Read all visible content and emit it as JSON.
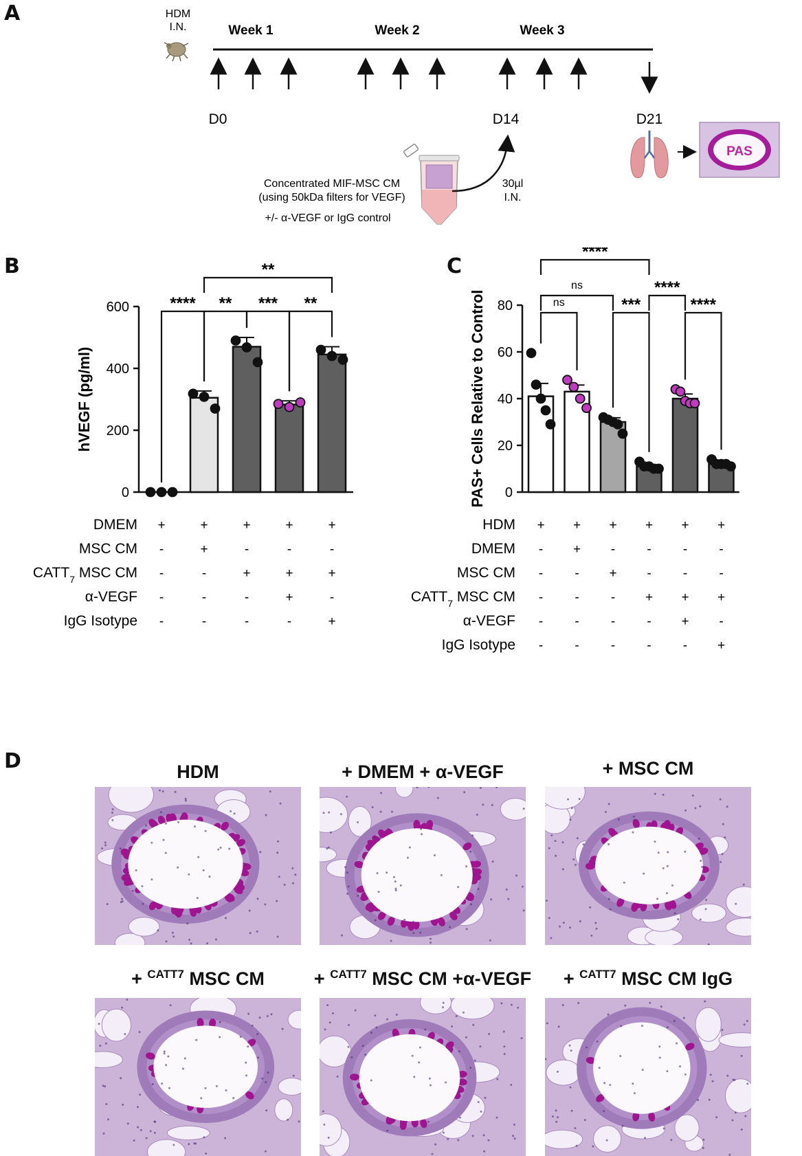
{
  "panels": {
    "A": "A",
    "B": "B",
    "C": "C",
    "D": "D"
  },
  "schematic": {
    "hdm_label_line1": "HDM",
    "hdm_label_line2": "I.N.",
    "weeks": [
      "Week 1",
      "Week 2",
      "Week 3"
    ],
    "day_labels": [
      "D0",
      "D14",
      "D21"
    ],
    "cm_line1": "Concentrated MIF-MSC CM",
    "cm_line2": "(using 50kDa filters for VEGF)",
    "cm_line3": "+/- α-VEGF or IgG control",
    "dose_line1": "30µl",
    "dose_line2": "I.N.",
    "pas_label": "PAS"
  },
  "chart_data": [
    {
      "type": "bar",
      "panel": "B",
      "ylabel": "hVEGF (pg/ml)",
      "ylim": [
        0,
        600
      ],
      "yticks": [
        0,
        200,
        400,
        600
      ],
      "bar_values": [
        0,
        305,
        470,
        283,
        445
      ],
      "sem": [
        0,
        22,
        30,
        12,
        25
      ],
      "bar_colors": [
        "#ffffff",
        "#e5e5e5",
        "#5f5f5f",
        "#5f5f5f",
        "#5f5f5f"
      ],
      "points": [
        [
          0,
          0,
          0
        ],
        [
          318,
          308,
          270
        ],
        [
          490,
          468,
          420
        ],
        [
          285,
          275,
          290
        ],
        [
          460,
          440,
          428
        ]
      ],
      "point_colors": [
        "#111111",
        "#111111",
        "#111111",
        "#c03ac0",
        "#111111"
      ],
      "conditions": [
        {
          "label": "DMEM",
          "signs": [
            "+",
            "+",
            "+",
            "+",
            "+"
          ]
        },
        {
          "label": "MSC CM",
          "signs": [
            "-",
            "+",
            "-",
            "-",
            "-"
          ]
        },
        {
          "label": "CATT",
          "sub": "7",
          "label_rest": " MSC CM",
          "signs": [
            "-",
            "-",
            "+",
            "+",
            "+"
          ]
        },
        {
          "label": "α-VEGF",
          "signs": [
            "-",
            "-",
            "-",
            "+",
            "-"
          ]
        },
        {
          "label": "IgG Isotype",
          "signs": [
            "-",
            "-",
            "-",
            "-",
            "+"
          ]
        }
      ],
      "brackets": [
        {
          "from": 0,
          "to": 1,
          "label": "****",
          "level": 0
        },
        {
          "from": 1,
          "to": 2,
          "label": "**",
          "level": 0
        },
        {
          "from": 2,
          "to": 3,
          "label": "***",
          "level": 0
        },
        {
          "from": 3,
          "to": 4,
          "label": "**",
          "level": 0
        },
        {
          "from": 1,
          "to": 4,
          "label": "**",
          "level": 1
        }
      ]
    },
    {
      "type": "bar",
      "panel": "C",
      "ylabel": "PAS+ Cells Relative to Control",
      "ylim": [
        0,
        80
      ],
      "yticks": [
        0,
        20,
        40,
        60,
        80
      ],
      "bar_values": [
        41,
        43,
        30,
        11,
        40,
        12
      ],
      "sem": [
        5.5,
        2.8,
        1.8,
        0.8,
        2.0,
        0.8
      ],
      "bar_colors": [
        "#ffffff",
        "#ffffff",
        "#a6a6a6",
        "#5f5f5f",
        "#5f5f5f",
        "#5f5f5f"
      ],
      "points": [
        [
          59.5,
          46,
          40,
          35,
          29
        ],
        [
          48,
          45,
          40,
          36
        ],
        [
          32,
          31,
          30,
          29,
          25
        ],
        [
          13,
          11,
          11,
          10,
          10
        ],
        [
          44,
          43,
          39,
          38,
          38
        ],
        [
          14,
          12,
          12,
          12,
          11
        ]
      ],
      "point_colors": [
        "#111111",
        "#c03ac0",
        "#111111",
        "#111111",
        "#c03ac0",
        "#111111"
      ],
      "conditions": [
        {
          "label": "HDM",
          "signs": [
            "+",
            "+",
            "+",
            "+",
            "+",
            "+"
          ]
        },
        {
          "label": "DMEM",
          "signs": [
            "-",
            "+",
            "-",
            "-",
            "-",
            "-"
          ]
        },
        {
          "label": "MSC CM",
          "signs": [
            "-",
            "-",
            "+",
            "-",
            "-",
            "-"
          ]
        },
        {
          "label": "CATT",
          "sub": "7",
          "label_rest": " MSC CM",
          "signs": [
            "-",
            "-",
            "-",
            "+",
            "+",
            "+"
          ]
        },
        {
          "label": "α-VEGF",
          "signs": [
            "-",
            "-",
            "-",
            "-",
            "+",
            "-"
          ]
        },
        {
          "label": "IgG Isotype",
          "signs": [
            "-",
            "-",
            "-",
            "-",
            "-",
            "+"
          ]
        }
      ],
      "brackets": [
        {
          "from": 0,
          "to": 1,
          "label": "ns",
          "level": 0
        },
        {
          "from": 2,
          "to": 3,
          "label": "***",
          "level": 0
        },
        {
          "from": 4,
          "to": 5,
          "label": "****",
          "level": 0
        },
        {
          "from": 0,
          "to": 2,
          "label": "ns",
          "level": 1
        },
        {
          "from": 3,
          "to": 4,
          "label": "****",
          "level": 1
        },
        {
          "from": 0,
          "to": 3,
          "label": "****",
          "level": 2
        }
      ]
    }
  ],
  "histology": {
    "titles": [
      "HDM",
      "+ DMEM + α-VEGF",
      "+ MSC CM",
      "+",
      "CATT7",
      "MSC CM",
      "+",
      "CATT7",
      "MSC CM +α-VEGF",
      "+",
      "CATT7",
      "MSC CM IgG"
    ],
    "magenta_level": [
      0.9,
      0.75,
      0.45,
      0.15,
      0.4,
      0.1
    ]
  }
}
